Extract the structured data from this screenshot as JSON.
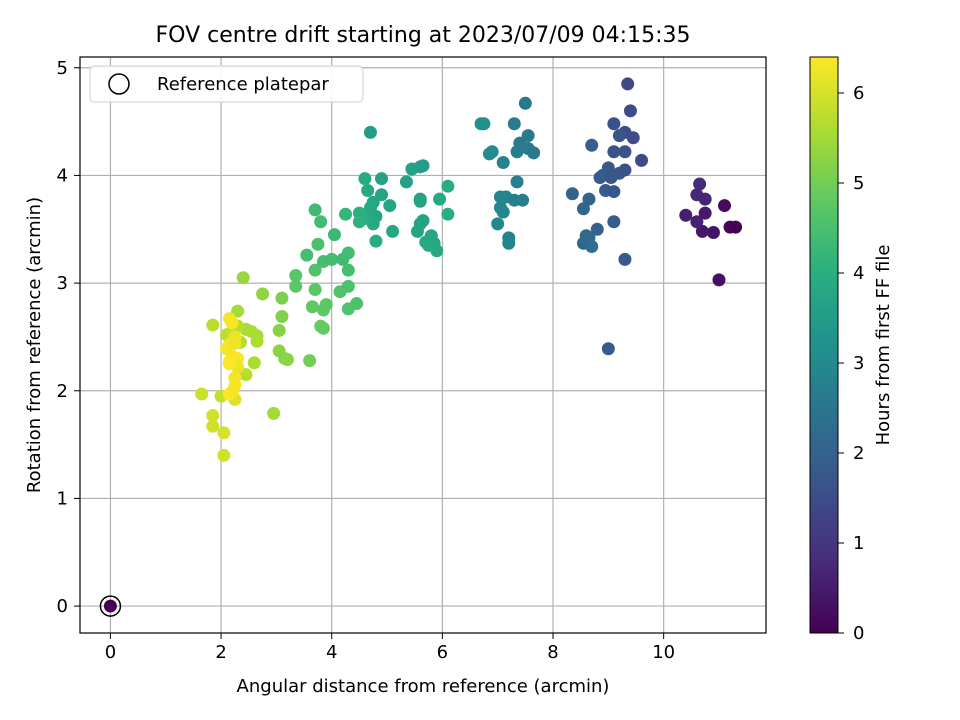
{
  "chart_data": {
    "type": "scatter",
    "title": "FOV centre drift starting at 2023/07/09 04:15:35",
    "xlabel": "Angular distance from reference (arcmin)",
    "ylabel": "Rotation from reference (arcmin)",
    "xlim": [
      -0.55,
      11.85
    ],
    "ylim": [
      -0.25,
      5.1
    ],
    "xticks": [
      0,
      2,
      4,
      6,
      8,
      10
    ],
    "yticks": [
      0,
      1,
      2,
      3,
      4,
      5
    ],
    "grid": true,
    "legend": {
      "placement": "top-left",
      "entries": [
        "Reference platepar"
      ]
    },
    "colorbar": {
      "label": "Hours from first FF file",
      "range": [
        0,
        6.4
      ],
      "ticks": [
        0,
        1,
        2,
        3,
        4,
        5,
        6
      ],
      "colormap": "viridis"
    },
    "reference": {
      "x": 0,
      "y": 0
    },
    "series": [
      {
        "points": [
          [
            0,
            0,
            0.0
          ],
          [
            11.0,
            3.03,
            0.3
          ],
          [
            11.1,
            3.72,
            0.2
          ],
          [
            11.2,
            3.52,
            0.1
          ],
          [
            11.3,
            3.52,
            0.05
          ],
          [
            10.9,
            3.47,
            0.35
          ],
          [
            10.7,
            3.48,
            0.4
          ],
          [
            10.4,
            3.63,
            0.55
          ],
          [
            10.6,
            3.57,
            0.6
          ],
          [
            10.75,
            3.65,
            0.45
          ],
          [
            10.6,
            3.82,
            0.7
          ],
          [
            10.65,
            3.92,
            0.75
          ],
          [
            10.75,
            3.78,
            0.65
          ],
          [
            9.35,
            4.85,
            1.4
          ],
          [
            9.4,
            4.6,
            1.45
          ],
          [
            9.3,
            4.4,
            1.5
          ],
          [
            9.1,
            4.48,
            1.55
          ],
          [
            9.2,
            4.37,
            1.6
          ],
          [
            9.45,
            4.35,
            1.5
          ],
          [
            9.6,
            4.14,
            1.45
          ],
          [
            9.3,
            4.22,
            1.6
          ],
          [
            9.1,
            4.22,
            1.65
          ],
          [
            9.2,
            4.02,
            1.7
          ],
          [
            9.3,
            4.05,
            1.55
          ],
          [
            9.0,
            4.07,
            1.75
          ],
          [
            8.9,
            4.0,
            1.8
          ],
          [
            9.05,
            3.98,
            1.7
          ],
          [
            8.95,
            3.86,
            1.85
          ],
          [
            9.1,
            3.85,
            1.75
          ],
          [
            8.85,
            3.98,
            1.8
          ],
          [
            8.7,
            4.28,
            1.9
          ],
          [
            8.35,
            3.83,
            2.05
          ],
          [
            8.55,
            3.69,
            2.1
          ],
          [
            8.65,
            3.78,
            2.0
          ],
          [
            9.1,
            3.57,
            1.9
          ],
          [
            8.8,
            3.5,
            2.0
          ],
          [
            8.6,
            3.44,
            2.15
          ],
          [
            8.65,
            3.42,
            2.2
          ],
          [
            8.55,
            3.37,
            2.15
          ],
          [
            8.7,
            3.34,
            2.25
          ],
          [
            9.3,
            3.22,
            1.8
          ],
          [
            9.0,
            2.39,
            1.85
          ],
          [
            7.5,
            4.67,
            2.55
          ],
          [
            7.3,
            4.48,
            2.65
          ],
          [
            7.55,
            4.37,
            2.6
          ],
          [
            7.4,
            4.3,
            2.6
          ],
          [
            7.35,
            4.22,
            2.7
          ],
          [
            7.55,
            4.25,
            2.65
          ],
          [
            7.65,
            4.21,
            2.55
          ],
          [
            7.1,
            4.12,
            2.8
          ],
          [
            7.35,
            3.94,
            2.75
          ],
          [
            7.05,
            3.8,
            2.85
          ],
          [
            7.15,
            3.8,
            2.9
          ],
          [
            7.3,
            3.77,
            2.75
          ],
          [
            7.45,
            3.77,
            2.7
          ],
          [
            7.05,
            3.7,
            2.9
          ],
          [
            7.1,
            3.66,
            2.95
          ],
          [
            7.0,
            3.55,
            3.0
          ],
          [
            7.2,
            3.42,
            2.85
          ],
          [
            7.2,
            3.37,
            2.9
          ],
          [
            6.85,
            4.2,
            3.1
          ],
          [
            6.9,
            4.22,
            3.05
          ],
          [
            6.75,
            4.48,
            3.15
          ],
          [
            6.7,
            4.48,
            3.2
          ],
          [
            5.6,
            4.08,
            3.55
          ],
          [
            5.65,
            4.09,
            3.5
          ],
          [
            5.45,
            4.06,
            3.6
          ],
          [
            5.35,
            3.94,
            3.65
          ],
          [
            5.6,
            3.78,
            3.6
          ],
          [
            5.6,
            3.76,
            3.7
          ],
          [
            5.65,
            3.58,
            3.65
          ],
          [
            5.6,
            3.55,
            3.7
          ],
          [
            5.55,
            3.48,
            3.75
          ],
          [
            5.7,
            3.38,
            3.8
          ],
          [
            5.8,
            3.44,
            3.75
          ],
          [
            5.85,
            3.37,
            3.8
          ],
          [
            5.9,
            3.3,
            3.85
          ],
          [
            5.95,
            3.78,
            3.9
          ],
          [
            6.1,
            3.9,
            3.95
          ],
          [
            6.1,
            3.64,
            4.0
          ],
          [
            5.75,
            3.35,
            3.85
          ],
          [
            4.7,
            4.4,
            3.5
          ],
          [
            4.6,
            3.97,
            3.85
          ],
          [
            4.65,
            3.86,
            3.9
          ],
          [
            4.75,
            3.75,
            3.8
          ],
          [
            4.7,
            3.7,
            3.85
          ],
          [
            4.9,
            3.82,
            3.7
          ],
          [
            4.9,
            3.97,
            3.65
          ],
          [
            5.05,
            3.72,
            3.75
          ],
          [
            4.8,
            3.62,
            3.8
          ],
          [
            4.75,
            3.55,
            3.9
          ],
          [
            4.6,
            3.6,
            4.0
          ],
          [
            4.5,
            3.65,
            4.05
          ],
          [
            4.5,
            3.57,
            4.1
          ],
          [
            4.8,
            3.39,
            3.95
          ],
          [
            5.1,
            3.48,
            3.8
          ],
          [
            4.25,
            3.64,
            4.2
          ],
          [
            3.7,
            3.68,
            4.35
          ],
          [
            3.8,
            3.57,
            4.4
          ],
          [
            3.55,
            3.26,
            4.45
          ],
          [
            3.75,
            3.36,
            4.5
          ],
          [
            3.85,
            3.2,
            4.45
          ],
          [
            4.0,
            3.22,
            4.4
          ],
          [
            4.2,
            3.22,
            4.35
          ],
          [
            4.3,
            3.28,
            4.4
          ],
          [
            4.3,
            3.12,
            4.45
          ],
          [
            4.05,
            3.45,
            4.3
          ],
          [
            3.7,
            3.12,
            4.6
          ],
          [
            3.35,
            3.07,
            4.7
          ],
          [
            3.35,
            2.97,
            4.75
          ],
          [
            3.7,
            2.94,
            4.75
          ],
          [
            3.65,
            2.78,
            4.8
          ],
          [
            3.85,
            2.75,
            4.8
          ],
          [
            3.9,
            2.8,
            4.75
          ],
          [
            4.15,
            2.92,
            4.6
          ],
          [
            4.3,
            2.97,
            4.55
          ],
          [
            4.3,
            2.76,
            4.6
          ],
          [
            4.45,
            2.81,
            4.55
          ],
          [
            3.8,
            2.6,
            4.9
          ],
          [
            3.85,
            2.58,
            4.85
          ],
          [
            3.6,
            2.28,
            5.0
          ],
          [
            3.1,
            2.86,
            5.1
          ],
          [
            3.1,
            2.69,
            5.15
          ],
          [
            3.05,
            2.56,
            5.2
          ],
          [
            3.05,
            2.37,
            5.25
          ],
          [
            3.15,
            2.3,
            5.2
          ],
          [
            3.2,
            2.29,
            5.25
          ],
          [
            2.75,
            2.9,
            5.3
          ],
          [
            2.4,
            3.05,
            5.4
          ],
          [
            2.3,
            2.74,
            5.5
          ],
          [
            2.45,
            2.57,
            5.55
          ],
          [
            2.55,
            2.55,
            5.6
          ],
          [
            2.65,
            2.51,
            5.55
          ],
          [
            2.65,
            2.46,
            5.6
          ],
          [
            2.35,
            2.45,
            5.65
          ],
          [
            2.6,
            2.26,
            5.6
          ],
          [
            2.45,
            2.15,
            5.7
          ],
          [
            2.95,
            1.79,
            5.5
          ],
          [
            1.85,
            2.61,
            5.7
          ],
          [
            2.1,
            2.52,
            5.75
          ],
          [
            2.2,
            2.55,
            5.8
          ],
          [
            2.3,
            2.6,
            5.7
          ],
          [
            1.65,
            1.97,
            5.9
          ],
          [
            2.0,
            1.95,
            5.85
          ],
          [
            1.85,
            1.77,
            5.95
          ],
          [
            1.85,
            1.67,
            5.95
          ],
          [
            2.05,
            1.61,
            6.0
          ],
          [
            2.05,
            1.4,
            5.95
          ],
          [
            2.25,
            1.92,
            6.05
          ],
          [
            2.15,
            2.67,
            6.3
          ],
          [
            2.2,
            2.63,
            6.35
          ],
          [
            2.25,
            2.5,
            6.2
          ],
          [
            2.15,
            2.43,
            6.3
          ],
          [
            2.1,
            2.39,
            6.35
          ],
          [
            2.25,
            2.44,
            6.25
          ],
          [
            2.2,
            2.32,
            6.3
          ],
          [
            2.3,
            2.3,
            6.35
          ],
          [
            2.15,
            2.27,
            6.4
          ],
          [
            2.3,
            2.22,
            6.2
          ],
          [
            2.25,
            2.12,
            6.3
          ],
          [
            2.25,
            2.05,
            6.35
          ],
          [
            2.15,
            1.97,
            6.4
          ],
          [
            2.2,
            1.99,
            6.3
          ],
          [
            2.15,
            2.25,
            6.4
          ]
        ]
      }
    ]
  }
}
